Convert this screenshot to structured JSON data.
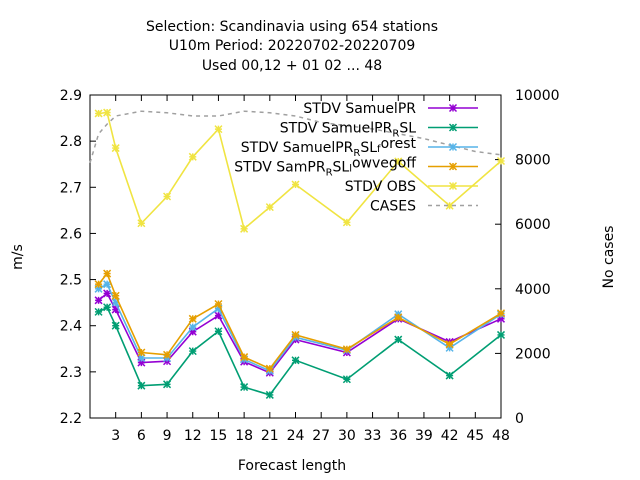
{
  "title_lines": [
    "Selection: Scandinavia using   654 stations",
    "U10m   Period: 20220702-20220709",
    "Used  00,12  + 01 02 ... 48"
  ],
  "chart_data": {
    "type": "line",
    "xlabel": "Forecast length",
    "ylabel": "m/s",
    "y2label": "No cases",
    "xlim": [
      0,
      48
    ],
    "ylim": [
      2.2,
      2.9
    ],
    "y2lim": [
      0,
      10000
    ],
    "xticks": [
      "3",
      "6",
      "9",
      "12",
      "15",
      "18",
      "21",
      "24",
      "27",
      "30",
      "33",
      "36",
      "39",
      "42",
      "45",
      "48"
    ],
    "yticks": [
      "2.2",
      "2.3",
      "2.4",
      "2.5",
      "2.6",
      "2.7",
      "2.8",
      "2.9"
    ],
    "y2ticks": [
      "0",
      "2000",
      "4000",
      "6000",
      "8000",
      "10000"
    ],
    "x": [
      1,
      2,
      3,
      6,
      9,
      12,
      15,
      18,
      21,
      24,
      30,
      36,
      42,
      48
    ],
    "series": [
      {
        "name": "STDV SamuelPR",
        "color": "#9400d3",
        "marker": "x",
        "values": [
          2.455,
          2.47,
          2.435,
          2.32,
          2.323,
          2.387,
          2.422,
          2.322,
          2.298,
          2.37,
          2.342,
          2.415,
          2.365,
          2.415
        ]
      },
      {
        "name": "STDV SamuelPR_RSL",
        "color": "#009e73",
        "marker": "x",
        "values": [
          2.43,
          2.44,
          2.4,
          2.27,
          2.273,
          2.345,
          2.388,
          2.267,
          2.25,
          2.325,
          2.284,
          2.37,
          2.292,
          2.38
        ]
      },
      {
        "name": "STDV SamuelPR_RSL_forest",
        "color": "#56b4e9",
        "marker": "x",
        "values": [
          2.48,
          2.49,
          2.45,
          2.33,
          2.33,
          2.397,
          2.437,
          2.327,
          2.302,
          2.375,
          2.347,
          2.425,
          2.352,
          2.425
        ]
      },
      {
        "name": "STDV SamPR_RSL_lowvegoff",
        "color": "#e69f00",
        "marker": "x",
        "values": [
          2.49,
          2.513,
          2.465,
          2.342,
          2.337,
          2.415,
          2.447,
          2.332,
          2.307,
          2.38,
          2.349,
          2.418,
          2.36,
          2.427
        ]
      },
      {
        "name": "STDV OBS",
        "color": "#f0e442",
        "marker": "x",
        "values": [
          2.86,
          2.862,
          2.785,
          2.622,
          2.68,
          2.766,
          2.826,
          2.61,
          2.657,
          2.706,
          2.624,
          2.756,
          2.66,
          2.757
        ]
      },
      {
        "name": "CASES",
        "color": "#a0a0a0",
        "marker": "none",
        "dashed": true,
        "axis": "y2",
        "x": [
          0,
          1,
          2,
          3,
          6,
          9,
          12,
          15,
          18,
          21,
          24,
          27,
          30,
          33,
          36,
          39,
          42,
          45,
          48
        ],
        "values": [
          7900,
          8800,
          9100,
          9350,
          9500,
          9450,
          9350,
          9350,
          9500,
          9450,
          9350,
          9150,
          9050,
          8950,
          8800,
          8650,
          8450,
          8250,
          8150
        ]
      }
    ],
    "legend": {
      "placement": "top-right",
      "entries": [
        {
          "label": "STDV SamuelPR",
          "color": "#9400d3",
          "marker": "x"
        },
        {
          "label": "STDV SamuelPR_RSL",
          "color": "#009e73",
          "marker": "x"
        },
        {
          "label": "STDV SamuelPR_RSL_forest",
          "color": "#56b4e9",
          "marker": "x"
        },
        {
          "label": "STDV SamPR_RSL_lowvegoff",
          "color": "#e69f00",
          "marker": "x"
        },
        {
          "label": "STDV OBS",
          "color": "#f0e442",
          "marker": "x"
        },
        {
          "label": "CASES",
          "color": "#a0a0a0",
          "marker": "none",
          "dashed": true
        }
      ]
    },
    "grid": false
  }
}
